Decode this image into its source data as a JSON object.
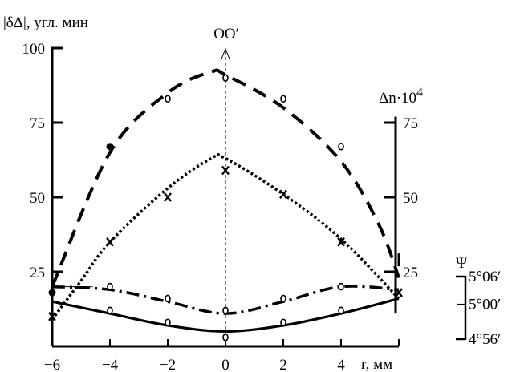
{
  "chart_data": {
    "type": "line",
    "title": "",
    "x": [
      -6,
      -4,
      -2,
      0,
      2,
      4,
      6
    ],
    "xlim": [
      -6,
      6
    ],
    "x_tick_labels": [
      "−6",
      "−4",
      "−2",
      "0",
      "2",
      "4"
    ],
    "x_unit_label": "r, мм",
    "left_axis": {
      "label": "|δΔ|, угл. мин",
      "ylim": [
        0,
        100
      ],
      "tick_values": [
        25,
        50,
        75,
        100
      ],
      "tick_labels": [
        "25",
        "50",
        "75",
        "100"
      ]
    },
    "middle_axis": {
      "label": "Δn·10",
      "label_sup": "4",
      "tick_values": [
        25,
        50,
        75
      ],
      "tick_labels": [
        "25",
        "50",
        "75"
      ]
    },
    "psi_axis": {
      "label": "Ψ",
      "tick_values": [
        18,
        10,
        0
      ],
      "tick_labels": [
        "5°06′",
        "5°00′",
        "4°56′"
      ]
    },
    "center_line_label": "OO′",
    "grid": false,
    "series": [
      {
        "style": "dashed",
        "curve_x": [
          -6,
          -4,
          -2,
          -0.5,
          0,
          2,
          4,
          5.3,
          6
        ],
        "curve_y": [
          20,
          65,
          85,
          92,
          91,
          80,
          62,
          41,
          23
        ],
        "markers": [
          {
            "x": -6,
            "y": 18,
            "symbol": "dot"
          },
          {
            "x": -4,
            "y": 67,
            "symbol": "dot"
          },
          {
            "x": -2,
            "y": 83,
            "symbol": "o"
          },
          {
            "x": 0,
            "y": 90,
            "symbol": "o"
          },
          {
            "x": 2,
            "y": 83,
            "symbol": "o"
          },
          {
            "x": 4,
            "y": 67,
            "symbol": "o"
          },
          {
            "x": 6,
            "y": 29,
            "symbol": "bar"
          }
        ]
      },
      {
        "style": "dotted",
        "curve_x": [
          -6,
          -5,
          -4,
          -2,
          -0.5,
          0,
          2,
          4,
          6
        ],
        "curve_y": [
          9,
          22,
          35,
          53,
          63,
          63,
          51,
          36,
          16
        ],
        "markers": [
          {
            "x": -6,
            "y": 10,
            "symbol": "x"
          },
          {
            "x": -4,
            "y": 35,
            "symbol": "x"
          },
          {
            "x": -2,
            "y": 50,
            "symbol": "x"
          },
          {
            "x": 0,
            "y": 59,
            "symbol": "x"
          },
          {
            "x": 2,
            "y": 51,
            "symbol": "x"
          },
          {
            "x": 4,
            "y": 35,
            "symbol": "x"
          },
          {
            "x": 6,
            "y": 18,
            "symbol": "x"
          }
        ]
      },
      {
        "style": "dashdot",
        "curve_x": [
          -6,
          -4,
          -2,
          0,
          2,
          4,
          6
        ],
        "curve_y": [
          20,
          19,
          15,
          11,
          15,
          20,
          19
        ],
        "markers": [
          {
            "x": -4,
            "y": 20,
            "symbol": "o"
          },
          {
            "x": -2,
            "y": 16,
            "symbol": "o"
          },
          {
            "x": 0,
            "y": 12,
            "symbol": "o"
          },
          {
            "x": 2,
            "y": 16,
            "symbol": "o"
          },
          {
            "x": 4,
            "y": 20,
            "symbol": "o"
          }
        ]
      },
      {
        "style": "solid",
        "curve_x": [
          -6,
          -4,
          -2,
          0,
          2,
          4,
          6
        ],
        "curve_y": [
          15,
          11,
          7,
          5,
          7,
          11,
          16
        ],
        "markers": [
          {
            "x": -4,
            "y": 12,
            "symbol": "o"
          },
          {
            "x": -2,
            "y": 8,
            "symbol": "o"
          },
          {
            "x": 0,
            "y": 3,
            "symbol": "o"
          },
          {
            "x": 2,
            "y": 8,
            "symbol": "o"
          },
          {
            "x": 4,
            "y": 12,
            "symbol": "o"
          }
        ]
      }
    ]
  }
}
